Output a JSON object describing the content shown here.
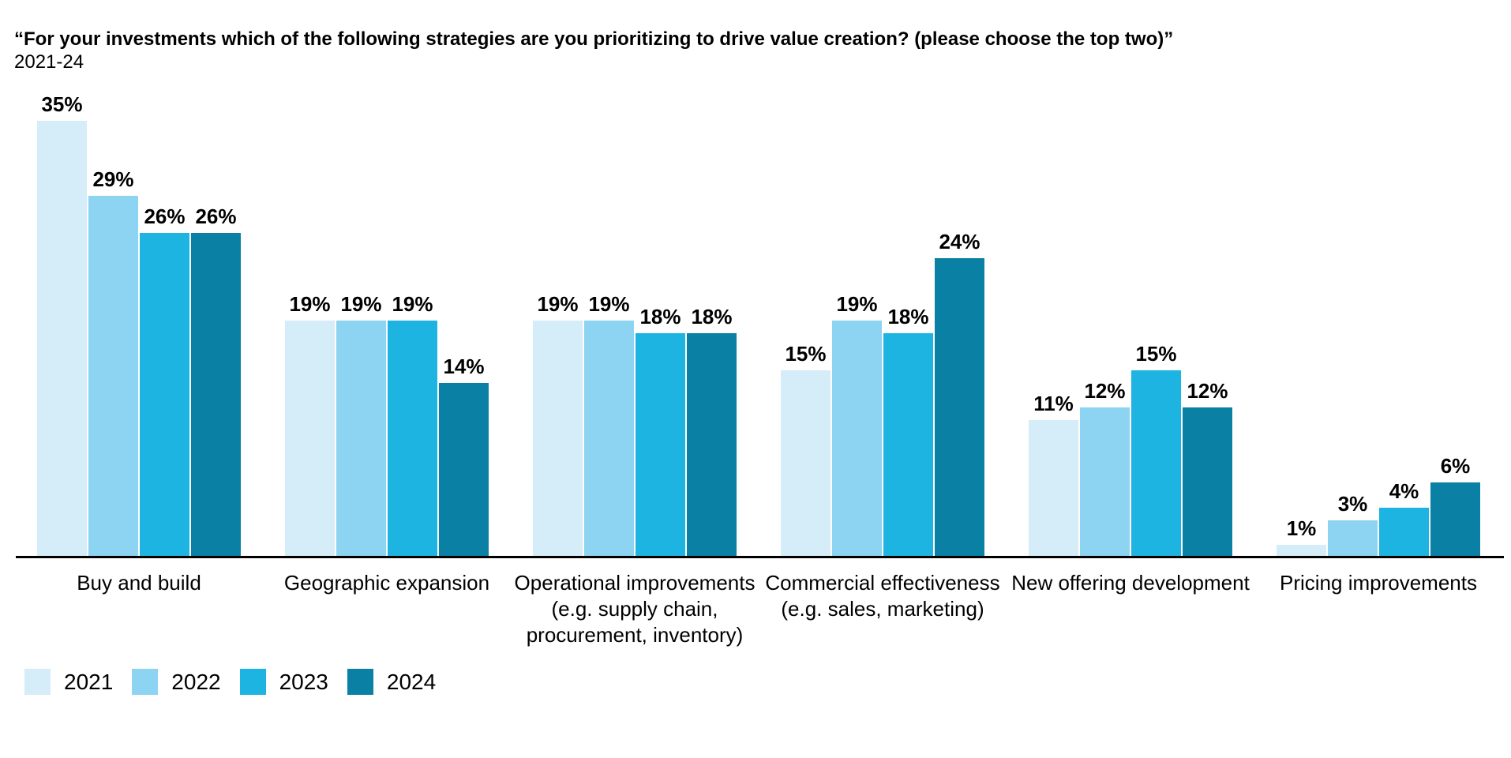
{
  "chart_data": {
    "type": "bar",
    "title": "“For your investments which of the following strategies are you prioritizing to drive value creation? (please choose the top two)”",
    "subtitle": "2021-24",
    "categories": [
      {
        "label": "Buy and build",
        "lines": [
          "Buy and build"
        ]
      },
      {
        "label": "Geographic expansion",
        "lines": [
          "Geographic expansion"
        ]
      },
      {
        "label": "Operational improvements (e.g. supply chain, procurement, inventory)",
        "lines": [
          "Operational improvements",
          "(e.g. supply chain,",
          "procurement, inventory)"
        ]
      },
      {
        "label": "Commercial effectiveness (e.g. sales, marketing)",
        "lines": [
          "Commercial effectiveness",
          "(e.g. sales, marketing)"
        ]
      },
      {
        "label": "New offering development",
        "lines": [
          "New offering development"
        ]
      },
      {
        "label": "Pricing improvements",
        "lines": [
          "Pricing improvements"
        ]
      }
    ],
    "series": [
      {
        "name": "2021",
        "color": "#D5ECF9",
        "values": [
          35,
          19,
          19,
          15,
          11,
          1
        ]
      },
      {
        "name": "2022",
        "color": "#8DD3F2",
        "values": [
          29,
          19,
          19,
          19,
          12,
          3
        ]
      },
      {
        "name": "2023",
        "color": "#1EB4E2",
        "values": [
          26,
          19,
          18,
          18,
          15,
          4
        ]
      },
      {
        "name": "2024",
        "color": "#0A80A4",
        "values": [
          26,
          14,
          18,
          24,
          12,
          6
        ]
      }
    ],
    "value_suffix": "%",
    "data_labels": "shown above each bar, bold",
    "xlabel": "",
    "ylabel": "",
    "ylim": [
      0,
      38
    ],
    "grid": false,
    "axis_line_color": "#000000",
    "legend_position": "bottom-left",
    "legend_entries": [
      "2021",
      "2022",
      "2023",
      "2024"
    ]
  }
}
